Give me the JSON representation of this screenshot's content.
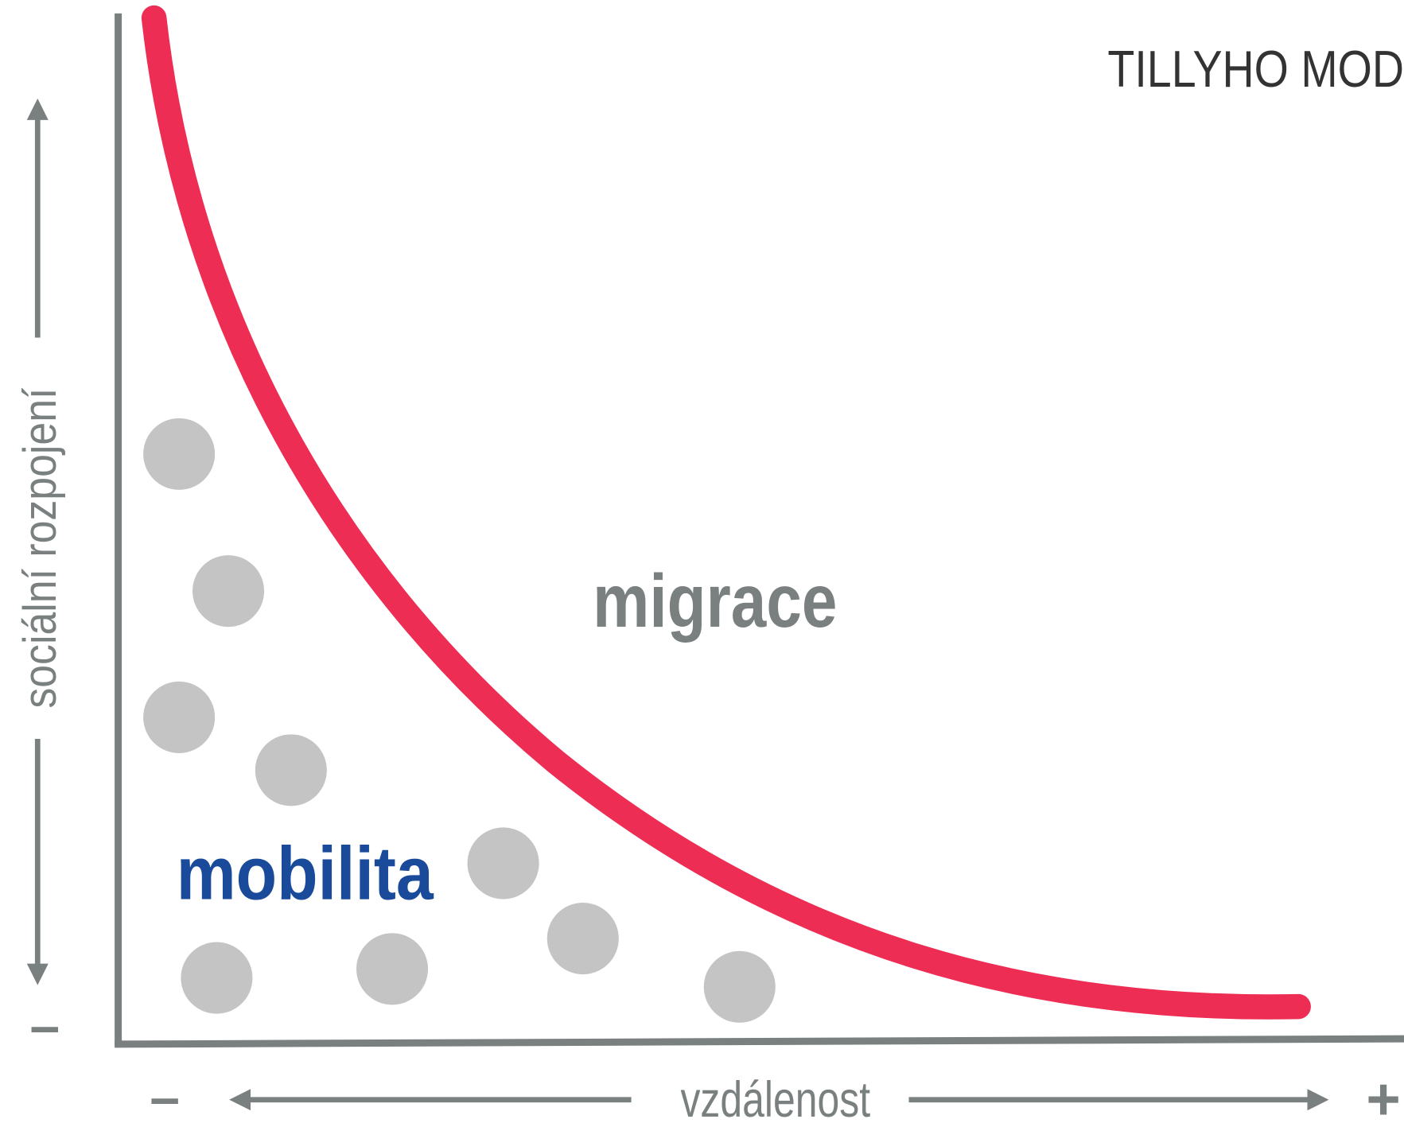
{
  "header": {
    "title": "TILLYHO MOD"
  },
  "y_axis": {
    "label": "sociální rozpojení",
    "minus": "–"
  },
  "x_axis": {
    "label": "vzdálenost",
    "minus": "–",
    "plus": "+"
  },
  "regions": {
    "upper": "migrace",
    "lower": "mobilita"
  }
}
